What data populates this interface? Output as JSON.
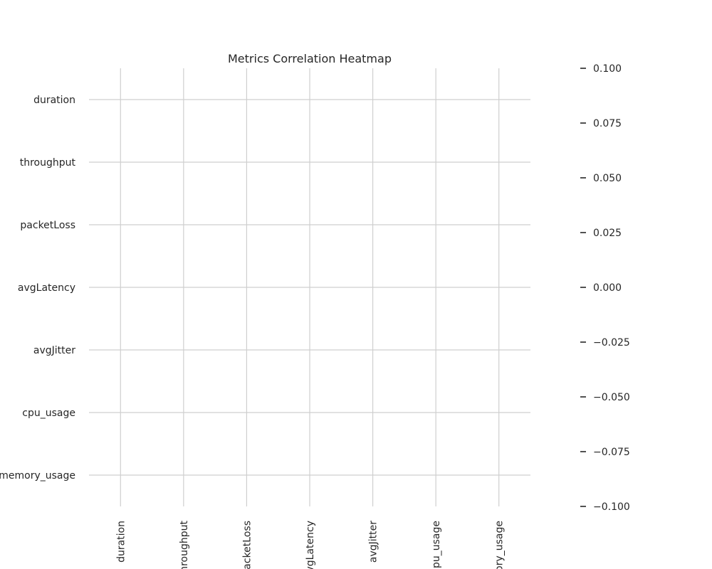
{
  "chart_data": {
    "type": "heatmap",
    "title": "Metrics Correlation Heatmap",
    "xlabel": "",
    "ylabel": "",
    "x_categories": [
      "duration",
      "throughput",
      "packetLoss",
      "avgLatency",
      "avgJitter",
      "cpu_usage",
      "memory_usage"
    ],
    "y_categories": [
      "duration",
      "throughput",
      "packetLoss",
      "avgLatency",
      "avgJitter",
      "cpu_usage",
      "memory_usage"
    ],
    "values": [
      [
        null,
        null,
        null,
        null,
        null,
        null,
        null
      ],
      [
        null,
        null,
        null,
        null,
        null,
        null,
        null
      ],
      [
        null,
        null,
        null,
        null,
        null,
        null,
        null
      ],
      [
        null,
        null,
        null,
        null,
        null,
        null,
        null
      ],
      [
        null,
        null,
        null,
        null,
        null,
        null,
        null
      ],
      [
        null,
        null,
        null,
        null,
        null,
        null,
        null
      ],
      [
        null,
        null,
        null,
        null,
        null,
        null,
        null
      ]
    ],
    "grid": true,
    "colorbar": {
      "range": [
        -0.1,
        0.1
      ],
      "ticks": [
        0.1,
        0.075,
        0.05,
        0.025,
        0.0,
        -0.025,
        -0.05,
        -0.075,
        -0.1
      ],
      "tick_labels": [
        "0.100",
        "0.075",
        "0.050",
        "0.025",
        "0.000",
        "−0.025",
        "−0.050",
        "−0.075",
        "−0.100"
      ]
    },
    "colors": {
      "grid": "#cfcfcf",
      "text": "#262626",
      "background": "#ffffff"
    }
  }
}
